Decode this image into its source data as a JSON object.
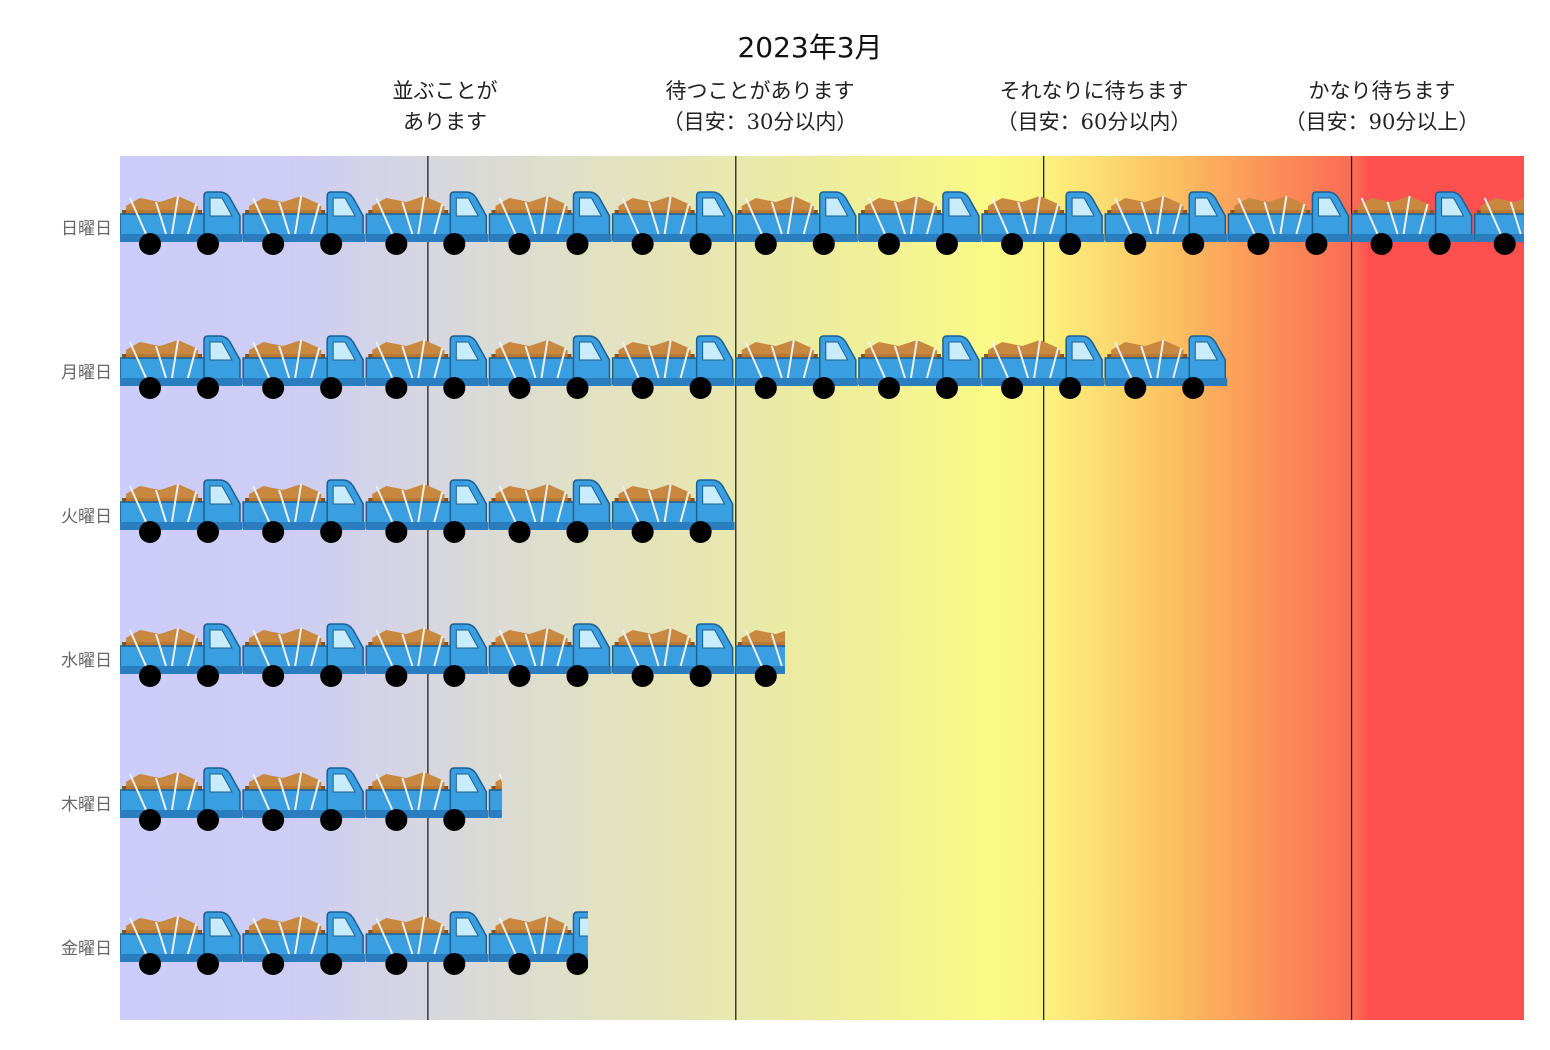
{
  "chart_data": {
    "type": "bar",
    "title": "2023年3月",
    "unit_icon": "truck-icon",
    "categories": [
      "日曜日",
      "月曜日",
      "火曜日",
      "水曜日",
      "木曜日",
      "金曜日"
    ],
    "values": [
      11.4,
      9.0,
      5.0,
      5.4,
      3.1,
      3.8
    ],
    "xlim": [
      0,
      11.4
    ],
    "thresholds": [
      2.5,
      5.0,
      7.5,
      10.0
    ],
    "zones": [
      {
        "line1": "並ぶことが",
        "line2": "あります"
      },
      {
        "line1": "待つことがあります",
        "line2": "（目安：30分以内）"
      },
      {
        "line1": "それなりに待ちます",
        "line2": "（目安：60分以内）"
      },
      {
        "line1": "かなり待ちます",
        "line2": "（目安：90分以上）"
      }
    ],
    "colors": {
      "truck_body": "#3a9fe0",
      "truck_cargo": "#a0662a",
      "truck_window": "#c8ecfb",
      "wheel": "#000000",
      "danger": "#ff5050",
      "calm": "#ccccf8"
    }
  }
}
